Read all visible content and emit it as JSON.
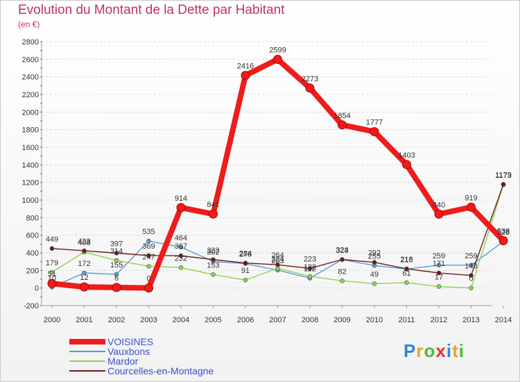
{
  "header": {
    "title": "Evolution du Montant de la Dette par Habitant",
    "unit": "(en €)"
  },
  "logo": {
    "text": "Proxiti",
    "letters": [
      {
        "ch": "P",
        "color": "#2f86d8"
      },
      {
        "ch": "r",
        "color": "#f0a21f"
      },
      {
        "ch": "o",
        "color": "#4fb93b"
      },
      {
        "ch": "x",
        "color": "#e8322a"
      },
      {
        "ch": "i",
        "color": "#2f86d8"
      },
      {
        "ch": "t",
        "color": "#f0a21f"
      },
      {
        "ch": "i",
        "color": "#4fb93b"
      }
    ]
  },
  "chart_data": {
    "type": "line",
    "x": [
      "2000",
      "2001",
      "2002",
      "2003",
      "2004",
      "2005",
      "2006",
      "2007",
      "2008",
      "2009",
      "2010",
      "2011",
      "2012",
      "2013",
      "2014"
    ],
    "ylim": [
      -200,
      2800
    ],
    "yticks": [
      -200,
      0,
      200,
      400,
      600,
      800,
      1000,
      1200,
      1400,
      1600,
      1800,
      2000,
      2200,
      2400,
      2600,
      2800
    ],
    "grid": "horizontal",
    "legend_position": "bottom-left",
    "series": [
      {
        "name": "VOISINES",
        "color": "#ee1c1c",
        "values": [
          51,
          12,
          6,
          0,
          914,
          841,
          2416,
          2599,
          2273,
          1854,
          1777,
          1403,
          840,
          919,
          538
        ]
      },
      {
        "name": "Vauxbons",
        "color": "#5b9bd5",
        "values": [
          10,
          172,
          155,
          535,
          464,
          302,
          276,
          203,
          112,
          323,
          255,
          216,
          259,
          259,
          528
        ]
      },
      {
        "name": "Mardor",
        "color": "#8fd14f",
        "values": [
          179,
          408,
          314,
          247,
          232,
          153,
          91,
          224,
          132,
          82,
          49,
          61,
          17,
          0,
          1173
        ]
      },
      {
        "name": "Courcelles-en-Montagne",
        "color": "#6b1a1a",
        "values": [
          449,
          423,
          397,
          369,
          367,
          323,
          284,
          264,
          223,
          324,
          292,
          218,
          171,
          143,
          1179
        ]
      }
    ]
  }
}
